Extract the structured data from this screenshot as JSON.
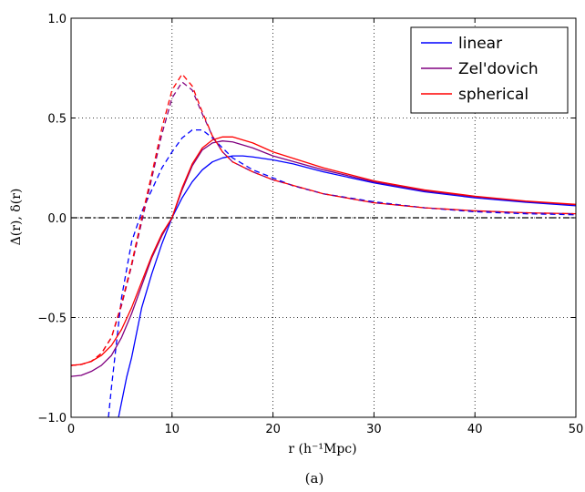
{
  "chart_data": {
    "type": "line",
    "xlabel": "r  (h⁻¹Mpc)",
    "ylabel": "Δ(r),   δ(r)",
    "caption": "(a)",
    "xlim": [
      0,
      50
    ],
    "ylim": [
      -1.0,
      1.0
    ],
    "xticks": [
      0,
      10,
      20,
      30,
      40,
      50
    ],
    "xtick_labels": [
      "0",
      "10",
      "20",
      "30",
      "40",
      "50"
    ],
    "yticks": [
      -1.0,
      -0.5,
      0.0,
      0.5,
      1.0
    ],
    "ytick_labels": [
      "−1.0",
      "−0.5",
      "0.0",
      "0.5",
      "1.0"
    ],
    "grid": true,
    "legend_position": "top-right",
    "legend": [
      {
        "label": "linear",
        "color": "#0000ff"
      },
      {
        "label": "Zel'dovich",
        "color": "#800080"
      },
      {
        "label": "spherical",
        "color": "#ff0000"
      }
    ],
    "reference_line": {
      "y": 0.0,
      "style": "dash-dot",
      "color": "#000000"
    },
    "series": [
      {
        "color": "#0000ff",
        "style": "solid",
        "x": [
          4.7,
          5.5,
          6,
          7,
          8,
          9,
          10,
          11,
          12,
          13,
          14,
          15,
          16,
          17,
          18,
          20,
          22,
          25,
          30,
          35,
          40,
          45,
          50
        ],
        "y": [
          -1.0,
          -0.8,
          -0.7,
          -0.45,
          -0.28,
          -0.13,
          0.0,
          0.1,
          0.18,
          0.24,
          0.28,
          0.3,
          0.31,
          0.31,
          0.305,
          0.29,
          0.27,
          0.23,
          0.175,
          0.13,
          0.1,
          0.078,
          0.06
        ]
      },
      {
        "color": "#0000ff",
        "style": "dashed",
        "x": [
          3.7,
          4,
          5,
          6,
          7,
          8,
          9,
          10,
          11,
          12,
          13,
          14,
          15,
          16,
          18,
          20,
          22,
          25,
          30,
          35,
          40,
          45,
          50
        ],
        "y": [
          -1.0,
          -0.85,
          -0.4,
          -0.12,
          0.03,
          0.14,
          0.25,
          0.33,
          0.4,
          0.44,
          0.44,
          0.4,
          0.35,
          0.3,
          0.24,
          0.2,
          0.16,
          0.12,
          0.08,
          0.05,
          0.03,
          0.02,
          0.015
        ]
      },
      {
        "color": "#800080",
        "style": "solid",
        "x": [
          0,
          1,
          2,
          3,
          4,
          5,
          6,
          7,
          8,
          9,
          10,
          11,
          12,
          13,
          14,
          15,
          16,
          18,
          20,
          25,
          30,
          35,
          40,
          45,
          50
        ],
        "y": [
          -0.795,
          -0.79,
          -0.77,
          -0.74,
          -0.69,
          -0.6,
          -0.48,
          -0.34,
          -0.2,
          -0.09,
          0.0,
          0.14,
          0.26,
          0.34,
          0.375,
          0.385,
          0.38,
          0.35,
          0.31,
          0.24,
          0.18,
          0.135,
          0.105,
          0.082,
          0.065
        ]
      },
      {
        "color": "#800080",
        "style": "dashed",
        "x": [
          0,
          1,
          2,
          3,
          4,
          5,
          6,
          7,
          8,
          9,
          10,
          11,
          12,
          13,
          14,
          15,
          16,
          18,
          20,
          25,
          30,
          35,
          40,
          45,
          50
        ],
        "y": [
          -0.74,
          -0.735,
          -0.72,
          -0.68,
          -0.6,
          -0.44,
          -0.24,
          -0.02,
          0.2,
          0.42,
          0.6,
          0.68,
          0.64,
          0.52,
          0.41,
          0.33,
          0.28,
          0.23,
          0.19,
          0.12,
          0.075,
          0.05,
          0.035,
          0.025,
          0.02
        ]
      },
      {
        "color": "#ff0000",
        "style": "solid",
        "x": [
          0,
          1,
          2,
          3,
          4,
          5,
          6,
          7,
          8,
          9,
          10,
          11,
          12,
          13,
          14,
          15,
          16,
          18,
          20,
          25,
          30,
          35,
          40,
          45,
          50
        ],
        "y": [
          -0.74,
          -0.735,
          -0.72,
          -0.69,
          -0.64,
          -0.56,
          -0.45,
          -0.32,
          -0.19,
          -0.08,
          0.0,
          0.15,
          0.27,
          0.35,
          0.39,
          0.405,
          0.405,
          0.375,
          0.33,
          0.25,
          0.185,
          0.14,
          0.108,
          0.084,
          0.067
        ]
      },
      {
        "color": "#ff0000",
        "style": "dashed",
        "x": [
          0,
          1,
          2,
          3,
          4,
          5,
          6,
          7,
          8,
          9,
          10,
          11,
          12,
          13,
          14,
          15,
          16,
          18,
          20,
          25,
          30,
          35,
          40,
          45,
          50
        ],
        "y": [
          -0.74,
          -0.735,
          -0.72,
          -0.68,
          -0.6,
          -0.43,
          -0.23,
          0.0,
          0.22,
          0.45,
          0.64,
          0.72,
          0.66,
          0.53,
          0.41,
          0.33,
          0.28,
          0.23,
          0.19,
          0.12,
          0.075,
          0.05,
          0.035,
          0.025,
          0.02
        ]
      }
    ]
  }
}
